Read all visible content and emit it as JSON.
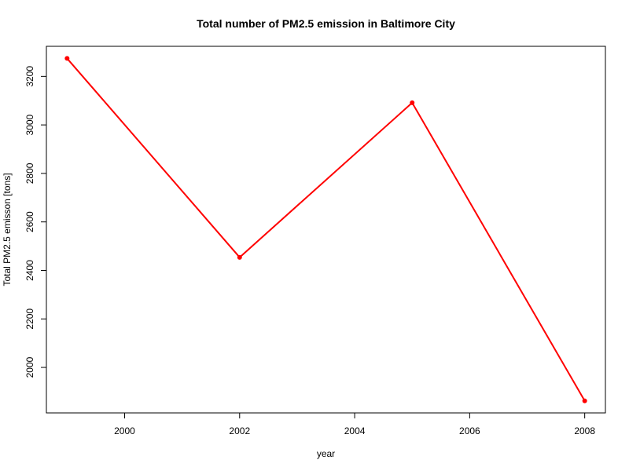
{
  "chart_data": {
    "type": "line",
    "title": "Total number of PM2.5 emission in Baltimore City",
    "xlabel": "year",
    "ylabel": "Total PM2.5 emisson [tons]",
    "x": [
      1999,
      2002,
      2005,
      2008
    ],
    "series": [
      {
        "values": [
          3274.18,
          2453.92,
          3091.35,
          1862.28
        ],
        "color": "#ff0000"
      }
    ],
    "xlim": [
      1998.64,
      2008.36
    ],
    "ylim": [
      1812.4,
      3324.1
    ],
    "xticks": [
      2000,
      2002,
      2004,
      2006,
      2008
    ],
    "yticks": [
      2000,
      2200,
      2400,
      2600,
      2800,
      3000,
      3200
    ],
    "grid": false,
    "legend": "none"
  }
}
